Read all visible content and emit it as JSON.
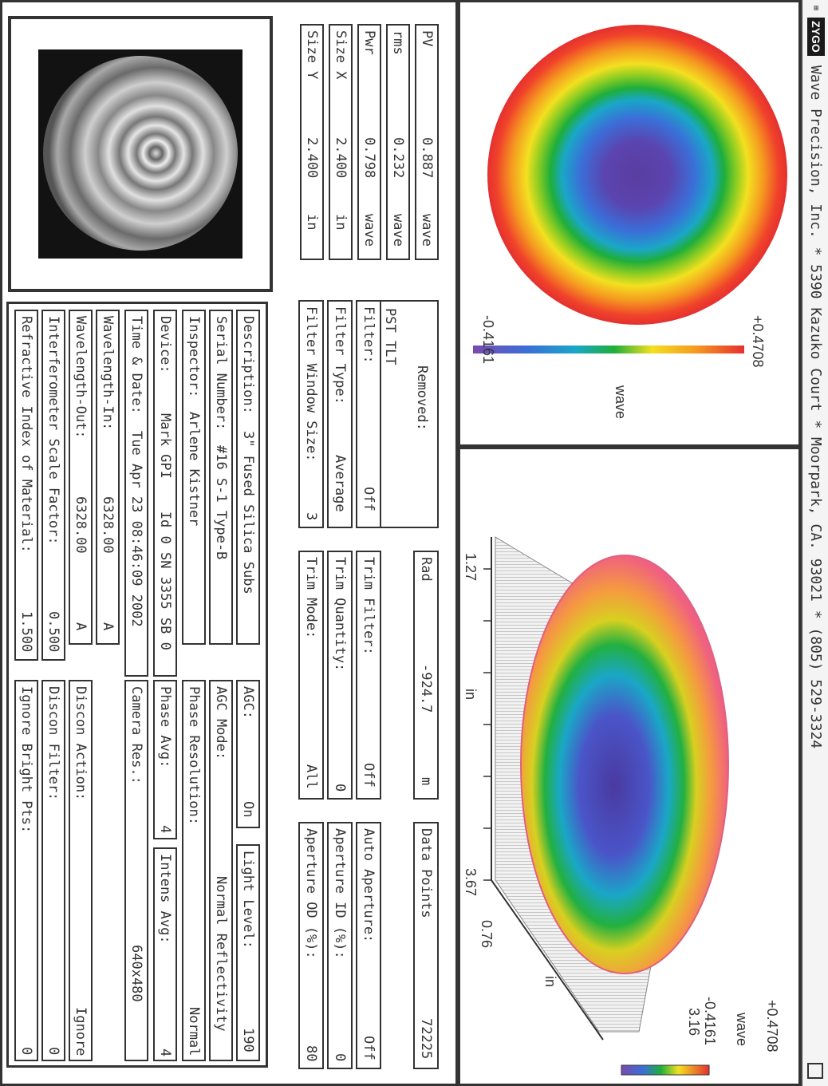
{
  "titlebar": {
    "logo": "ZYGO",
    "title": "Wave Precision, Inc. * 5390 Kazuko Court * Moorpark, CA. 93021 * (805) 529-3324"
  },
  "map2d": {
    "colorbar_max": "+0.4708",
    "colorbar_min": "-0.4161",
    "unit": "wave"
  },
  "plot3d": {
    "colorbar_max": "+0.4708",
    "colorbar_min": "-0.4161",
    "unit": "wave",
    "z_range": "3.16",
    "axis_x_unit": "in",
    "axis_y_unit": "in",
    "axis_x_min": "1.27",
    "axis_x_max": "3.67",
    "axis_y_tick": "0.76"
  },
  "stats": [
    {
      "label": "PV",
      "value": "0.887",
      "unit": "wave"
    },
    {
      "label": "rms",
      "value": "0.232",
      "unit": "wave"
    },
    {
      "label": "Pwr",
      "value": "0.798",
      "unit": "wave"
    },
    {
      "label": "Size X",
      "value": "2.400",
      "unit": "in"
    },
    {
      "label": "Size Y",
      "value": "2.400",
      "unit": "in"
    }
  ],
  "removed": {
    "label": "Removed:",
    "value": "PST TLT"
  },
  "filter": {
    "filter_label": "Filter:",
    "filter_value": "Off",
    "type_label": "Filter Type:",
    "type_value": "Average",
    "window_label": "Filter Window Size:",
    "window_value": "3"
  },
  "rad": {
    "label": "Rad",
    "value": "-924.7",
    "unit": "m"
  },
  "trim": {
    "filter_label": "Trim Filter:",
    "filter_value": "Off",
    "quantity_label": "Trim Quantity:",
    "quantity_value": "0",
    "mode_label": "Trim Mode:",
    "mode_value": "All"
  },
  "data_points": {
    "label": "Data Points",
    "value": "72225"
  },
  "aperture": {
    "auto_label": "Auto Aperture:",
    "auto_value": "Off",
    "id_label": "Aperture ID (%):",
    "id_value": "0",
    "od_label": "Aperture OD (%):",
    "od_value": "80"
  },
  "info": {
    "description_label": "Description:",
    "description_value": "3\" Fused Silica Subs",
    "serial_label": "Serial Number:",
    "serial_value": "#16 S-1 Type-B",
    "inspector_label": "Inspector:",
    "inspector_value": "Arlene Kistner",
    "device_label": "Device:",
    "device_value": "Mark GPI    Id 0 SN 3355 SB 0",
    "time_label": "Time & Date:",
    "time_value": "Tue Apr 23 08:46:09 2002",
    "wl_in_label": "Wavelength-In:",
    "wl_in_value": "6328.00",
    "wl_in_unit": "A",
    "wl_out_label": "Wavelength-Out:",
    "wl_out_value": "6328.00",
    "wl_out_unit": "A",
    "scale_label": "Interferometer Scale Factor:",
    "scale_value": "0.500",
    "refr_label": "Refractive Index of Material:",
    "refr_value": "1.500"
  },
  "settings": {
    "agc_label": "AGC:",
    "agc_value": "On",
    "light_label": "Light Level:",
    "light_value": "190",
    "agc_mode_label": "AGC Mode:",
    "agc_mode_value": "Normal Reflectivity",
    "phase_res_label": "Phase Resolution:",
    "phase_res_value": "Normal",
    "phase_avg_label": "Phase Avg:",
    "phase_avg_value": "4",
    "intens_avg_label": "Intens Avg:",
    "intens_avg_value": "4",
    "camera_label": "Camera Res.:",
    "camera_value": "640x480",
    "discon_action_label": "Discon Action:",
    "discon_action_value": "Ignore",
    "discon_filter_label": "Discon Filter:",
    "discon_filter_value": "0",
    "ignore_bright_label": "Ignore Bright Pts:",
    "ignore_bright_value": "0"
  }
}
